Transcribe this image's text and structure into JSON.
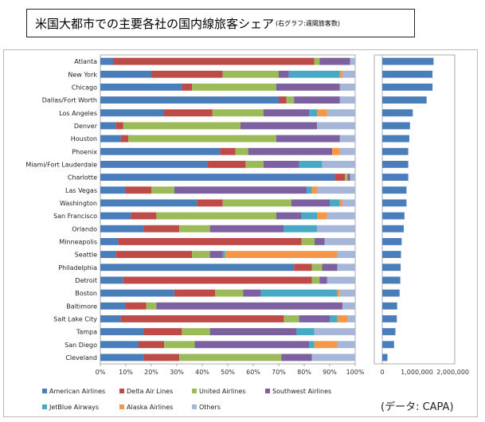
{
  "title": {
    "main": "米国大都市での主要各社の国内線旅客シェア",
    "sub": "(右グラフ:週間旅客数)"
  },
  "source_note": "(データ: CAPA)",
  "chart_data": [
    {
      "type": "bar",
      "orientation": "horizontal",
      "stacked": "percent",
      "categories": [
        "Atlanta",
        "New York",
        "Chicago",
        "Dallas/Fort Worth",
        "Los Angeles",
        "Denver",
        "Houston",
        "Phoenix",
        "Miami/Fort Lauderdale",
        "Charlotte",
        "Las Vegas",
        "Washington",
        "San Francisco",
        "Orlando",
        "Minneapolis",
        "Seattle",
        "Philadelphia",
        "Detroit",
        "Boston",
        "Baltimore",
        "Salt Lake City",
        "Tampa",
        "San Diego",
        "Cleveland"
      ],
      "series": [
        {
          "name": "American Airlines",
          "color": "#4a7ebb",
          "values": [
            5,
            20,
            32,
            70,
            25,
            6,
            8,
            47,
            42,
            92,
            10,
            38,
            12,
            17,
            7,
            6,
            76,
            9,
            29,
            10,
            8,
            17,
            15,
            17
          ]
        },
        {
          "name": "Delta Air Lines",
          "color": "#be4b48",
          "values": [
            79,
            28,
            4,
            3,
            19,
            3,
            3,
            6,
            15,
            4,
            10,
            10,
            10,
            14,
            72,
            30,
            7,
            74,
            16,
            8,
            64,
            15,
            10,
            14
          ]
        },
        {
          "name": "United Airlines",
          "color": "#9bbb59",
          "values": [
            2,
            22,
            33,
            3,
            20,
            46,
            58,
            5,
            7,
            1,
            9,
            27,
            47,
            12,
            5,
            7,
            4,
            3,
            11,
            4,
            6,
            11,
            12,
            40
          ]
        },
        {
          "name": "Southwest Airlines",
          "color": "#7d60a0",
          "values": [
            12,
            4,
            25,
            18,
            18,
            30,
            25,
            33,
            14,
            1,
            52,
            15,
            10,
            29,
            4,
            5,
            6,
            3,
            7,
            73,
            12,
            34,
            45,
            12
          ]
        },
        {
          "name": "JetBlue Airways",
          "color": "#46aac5",
          "values": [
            0,
            20,
            0,
            0,
            3,
            0,
            0,
            0,
            9,
            0,
            2,
            4,
            6,
            13,
            0,
            1,
            0,
            0,
            30,
            0,
            3,
            7,
            2,
            0
          ]
        },
        {
          "name": "Alaska Airlines",
          "color": "#f79646",
          "values": [
            0,
            1,
            0,
            0,
            4,
            0,
            0,
            3,
            0,
            0,
            2,
            1,
            4,
            0,
            0,
            44,
            0,
            0,
            1,
            0,
            4,
            0,
            9,
            0
          ]
        },
        {
          "name": "Others",
          "color": "#a5b6d9",
          "values": [
            2,
            5,
            6,
            6,
            11,
            15,
            6,
            6,
            13,
            2,
            15,
            5,
            11,
            15,
            12,
            7,
            7,
            11,
            6,
            5,
            3,
            16,
            7,
            17
          ]
        }
      ],
      "xaxis_ticks": [
        "0%",
        "10%",
        "20%",
        "30%",
        "40%",
        "50%",
        "60%",
        "70%",
        "80%",
        "90%",
        "100%"
      ],
      "legend_position": "bottom"
    },
    {
      "type": "bar",
      "orientation": "horizontal",
      "categories": [
        "Atlanta",
        "New York",
        "Chicago",
        "Dallas/Fort Worth",
        "Los Angeles",
        "Denver",
        "Houston",
        "Phoenix",
        "Miami/Fort Lauderdale",
        "Charlotte",
        "Las Vegas",
        "Washington",
        "San Francisco",
        "Orlando",
        "Minneapolis",
        "Seattle",
        "Philadelphia",
        "Detroit",
        "Boston",
        "Baltimore",
        "Salt Lake City",
        "Tampa",
        "San Diego",
        "Cleveland"
      ],
      "values": [
        1480000,
        1450000,
        1450000,
        1280000,
        880000,
        800000,
        780000,
        750000,
        750000,
        750000,
        700000,
        700000,
        640000,
        620000,
        560000,
        540000,
        530000,
        520000,
        500000,
        430000,
        420000,
        380000,
        340000,
        150000
      ],
      "color": "#4a7ebb",
      "xlim": [
        0,
        2000000
      ],
      "xaxis_ticks": [
        "0",
        "1,000,000",
        "2,000,000"
      ]
    }
  ]
}
